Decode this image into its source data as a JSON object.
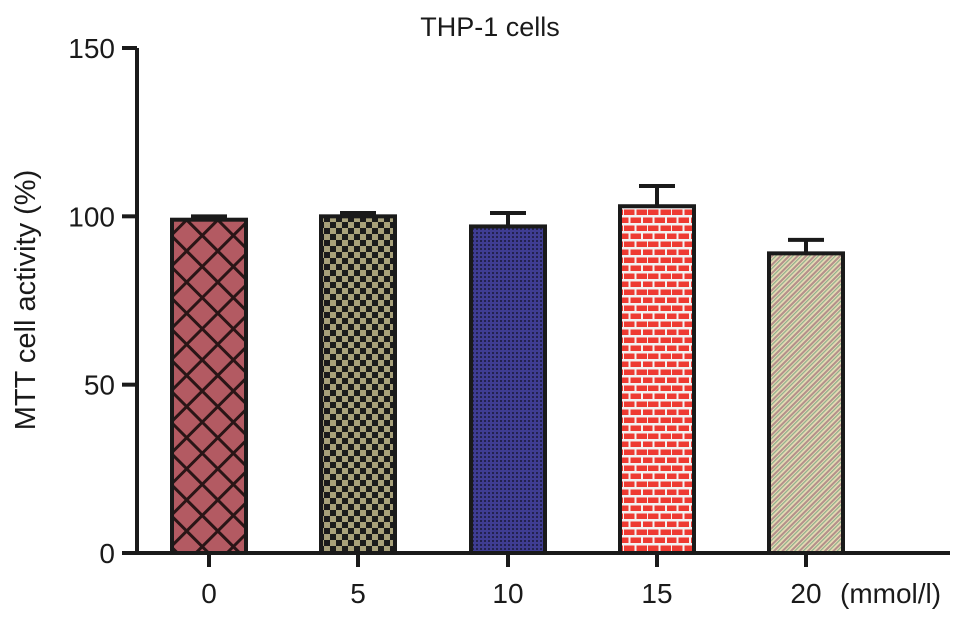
{
  "chart_data": {
    "type": "bar",
    "title": "THP-1 cells",
    "ylabel": "MTT cell activity (%)",
    "xlabel": "",
    "x_unit_label": "(mmol/l)",
    "categories": [
      "0",
      "5",
      "10",
      "15",
      "20"
    ],
    "values": [
      99,
      100,
      97,
      103,
      89
    ],
    "error": [
      1,
      1,
      4,
      6,
      4
    ],
    "ylim": [
      0,
      150
    ],
    "yticks": [
      0,
      50,
      100,
      150
    ],
    "grid": false,
    "legend": "none",
    "bar_colors": [
      "#b35a62",
      "#8f8a66",
      "#3c3a8c",
      "#ee3a32",
      "#d8cba2"
    ],
    "bar_patterns": [
      "crosshatch",
      "checker",
      "fine-dots",
      "brick",
      "diagonal-stripes"
    ]
  }
}
